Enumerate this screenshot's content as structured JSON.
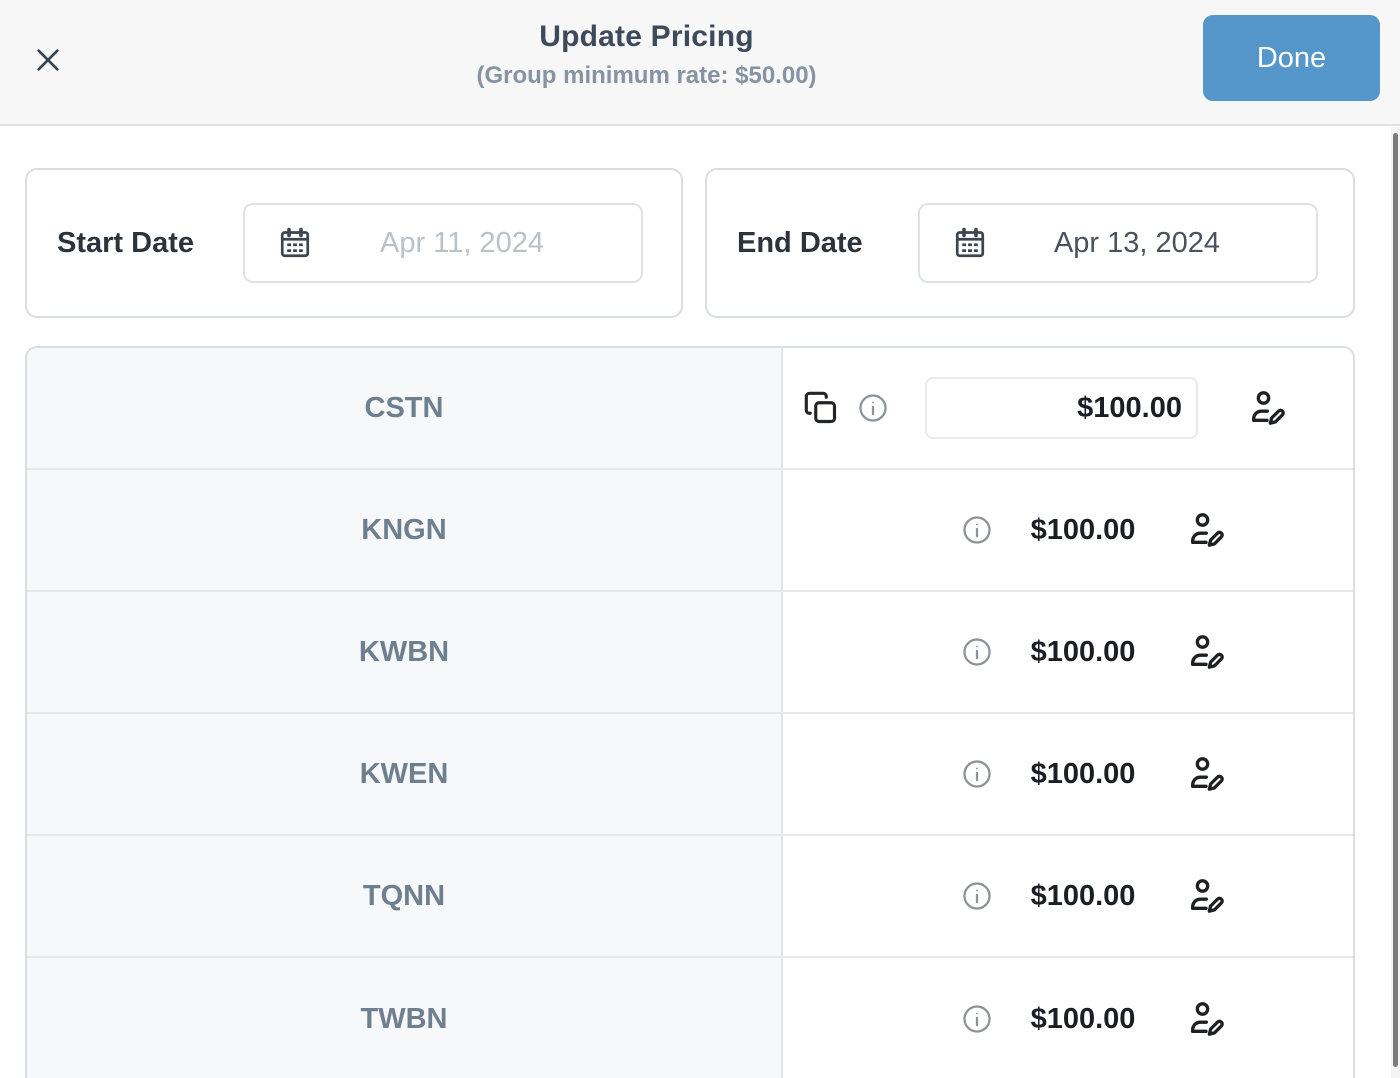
{
  "header": {
    "title": "Update Pricing",
    "subtitle": "(Group minimum rate: $50.00)",
    "close_icon": "close-x",
    "done_label": "Done"
  },
  "dates": {
    "start": {
      "label": "Start Date",
      "value": "Apr 11, 2024",
      "state": "placeholder",
      "icon": "calendar-icon"
    },
    "end": {
      "label": "End Date",
      "value": "Apr 13, 2024",
      "state": "filled",
      "icon": "calendar-icon"
    }
  },
  "table": {
    "rows": [
      {
        "code": "CSTN",
        "price": "$100.00",
        "editable_input": true,
        "has_copy_icon": true,
        "has_info_icon": true,
        "has_person_edit_icon": true
      },
      {
        "code": "KNGN",
        "price": "$100.00",
        "editable_input": false,
        "has_copy_icon": false,
        "has_info_icon": true,
        "has_person_edit_icon": true
      },
      {
        "code": "KWBN",
        "price": "$100.00",
        "editable_input": false,
        "has_copy_icon": false,
        "has_info_icon": true,
        "has_person_edit_icon": true
      },
      {
        "code": "KWEN",
        "price": "$100.00",
        "editable_input": false,
        "has_copy_icon": false,
        "has_info_icon": true,
        "has_person_edit_icon": true
      },
      {
        "code": "TQNN",
        "price": "$100.00",
        "editable_input": false,
        "has_copy_icon": false,
        "has_info_icon": true,
        "has_person_edit_icon": true
      },
      {
        "code": "TWBN",
        "price": "$100.00",
        "editable_input": false,
        "has_copy_icon": false,
        "has_info_icon": true,
        "has_person_edit_icon": true
      }
    ]
  },
  "colors": {
    "accent_blue": "#5596cb",
    "title_text": "#3c4a5b",
    "subtitle_text": "#8593a2",
    "row_code_text": "#6e8090",
    "price_text": "#1b1e22",
    "placeholder_text": "#b9c1c9",
    "header_background": "#f7f7f7",
    "table_border": "#d9dee3",
    "left_cell_background": "#f7f8f9"
  }
}
